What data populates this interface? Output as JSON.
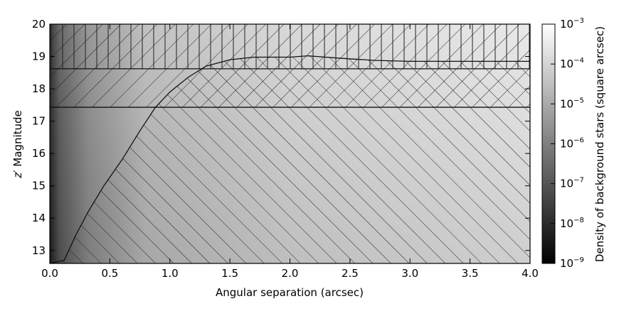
{
  "chart_data": {
    "type": "heatmap",
    "title": "",
    "xlabel": "Angular separation (arcsec)",
    "ylabel_prefix": "z",
    "ylabel_prime": "′",
    "ylabel_rest": " Magnitude",
    "xlim": [
      0.0,
      4.0
    ],
    "ylim": [
      12.6,
      20.0
    ],
    "xticks": [
      "0.0",
      "0.5",
      "1.0",
      "1.5",
      "2.0",
      "2.5",
      "3.0",
      "3.5",
      "4.0"
    ],
    "yticks": [
      "13",
      "14",
      "15",
      "16",
      "17",
      "18",
      "19",
      "20"
    ],
    "grid": false,
    "colormap": "gray",
    "colorbar": {
      "label": "Density of background stars (square arcsec)",
      "scale": "log",
      "range": [
        1e-09,
        0.001
      ],
      "tick_base": "10",
      "tick_exponents": [
        "−9",
        "−8",
        "−7",
        "−6",
        "−5",
        "−4",
        "−3"
      ]
    },
    "horizontal_limits": [
      {
        "y": 18.62,
        "hatch": "vertical",
        "region": "above"
      },
      {
        "y": 17.43,
        "hatch": "forward-diagonal",
        "region": "above"
      }
    ],
    "detection_curve": {
      "x": [
        0.0,
        0.12,
        0.22,
        0.32,
        0.45,
        0.6,
        0.75,
        0.88,
        1.0,
        1.15,
        1.3,
        1.5,
        1.7,
        2.0,
        2.15,
        2.4,
        2.7,
        3.0,
        3.5,
        4.0
      ],
      "y": [
        12.6,
        12.7,
        13.5,
        14.2,
        15.0,
        15.8,
        16.7,
        17.43,
        17.9,
        18.35,
        18.7,
        18.9,
        18.98,
        18.98,
        19.02,
        18.95,
        18.88,
        18.85,
        18.85,
        18.85
      ],
      "hatch": "back-diagonal",
      "region": "below"
    }
  }
}
